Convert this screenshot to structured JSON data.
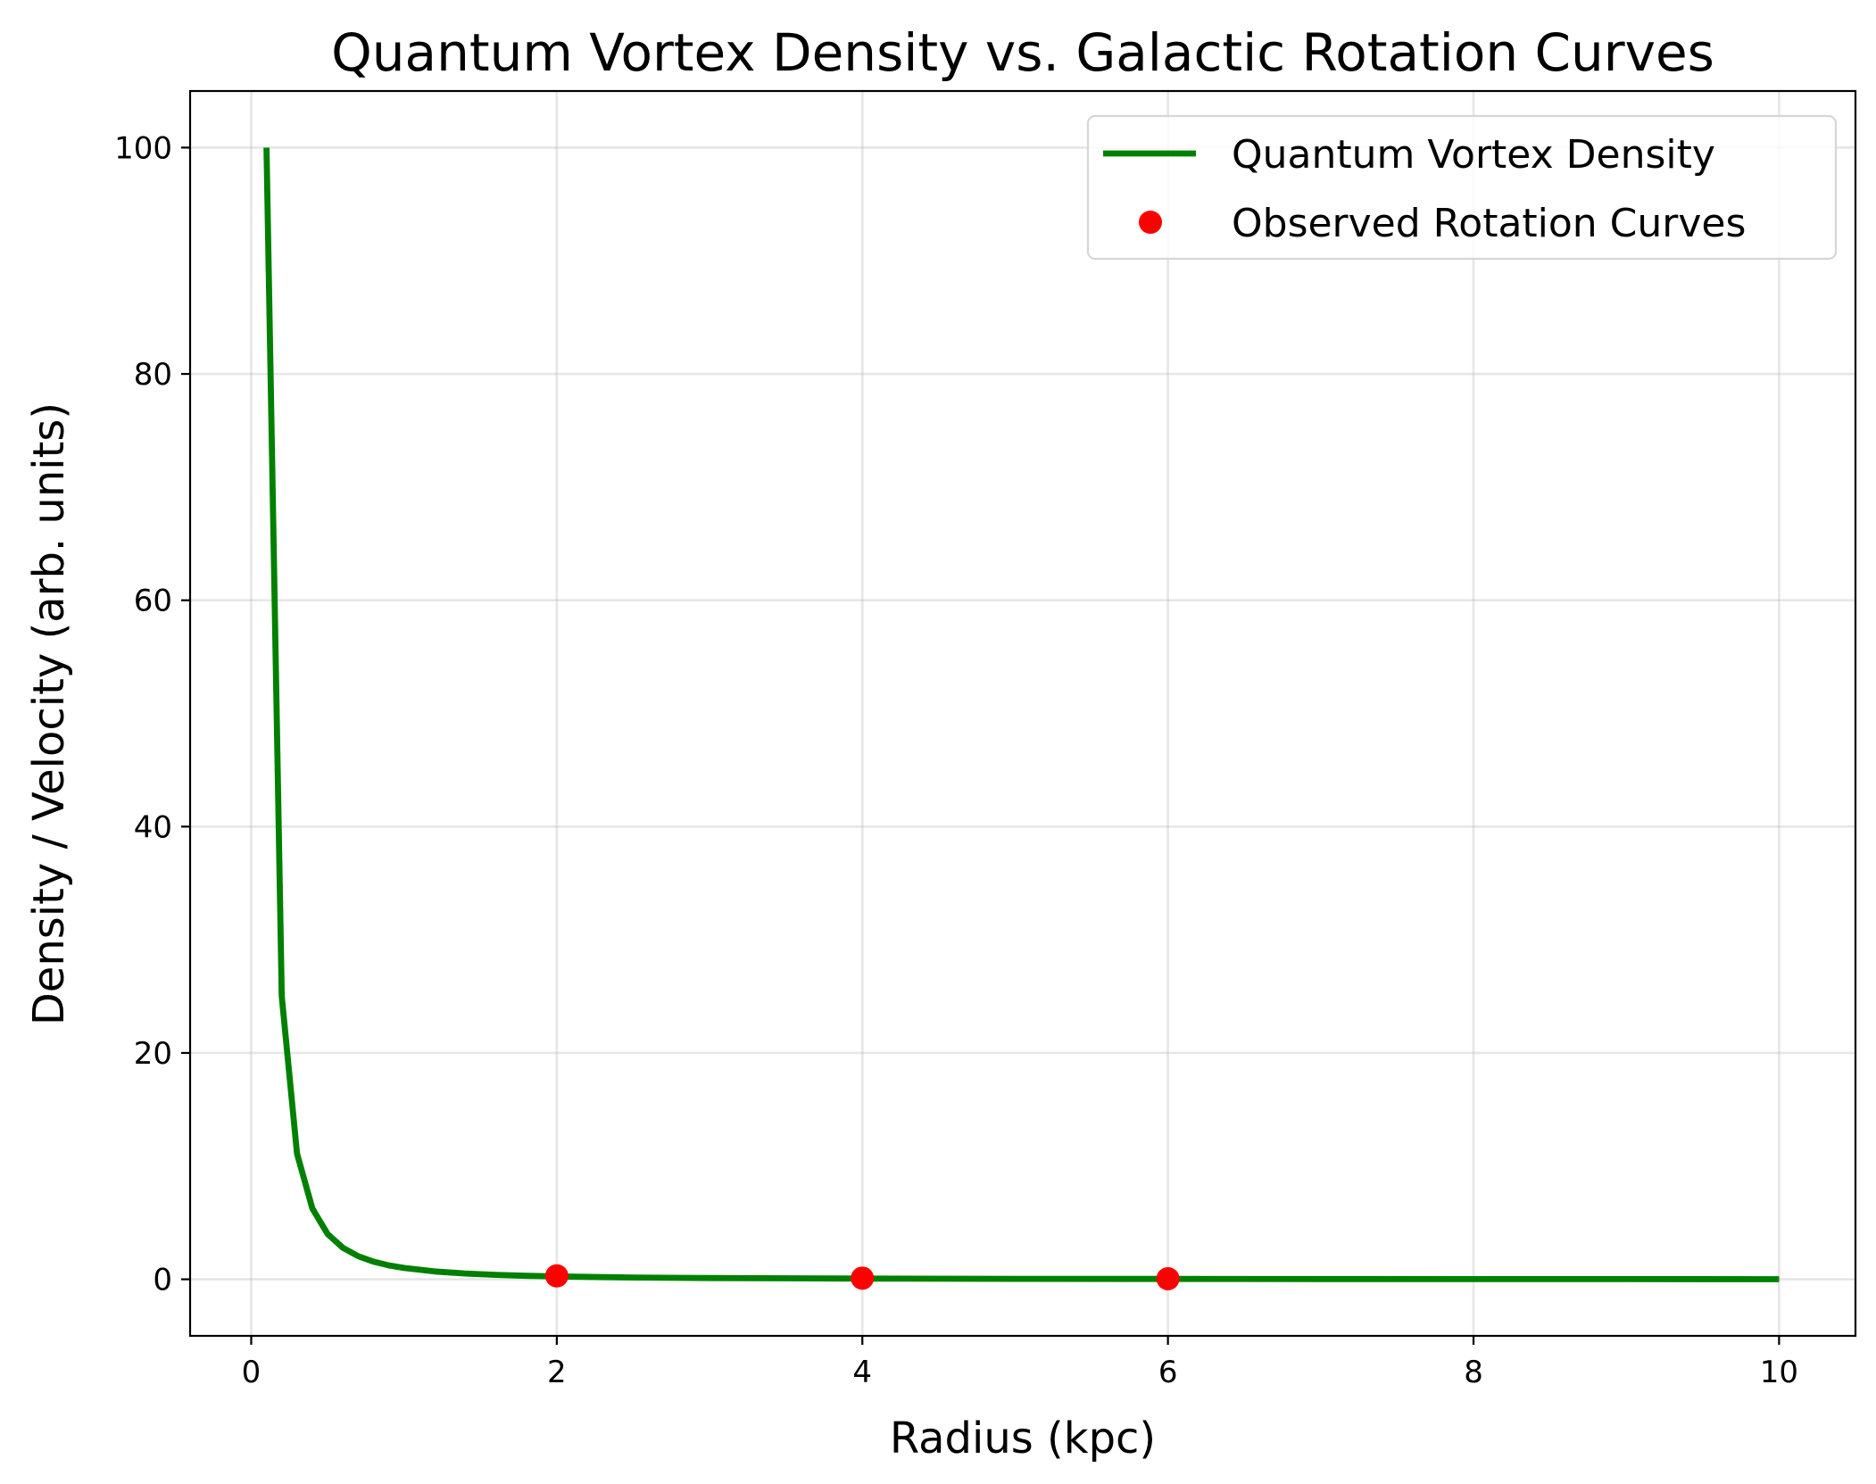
{
  "chart_data": {
    "type": "line",
    "title": "Quantum Vortex Density vs. Galactic Rotation Curves",
    "xlabel": "Radius (kpc)",
    "ylabel": "Density / Velocity (arb. units)",
    "xlim": [
      -0.4,
      10.5
    ],
    "ylim": [
      -5,
      105
    ],
    "xticks": [
      0,
      2,
      4,
      6,
      8,
      10
    ],
    "yticks": [
      0,
      20,
      40,
      60,
      80,
      100
    ],
    "grid": true,
    "legend_position": "upper-right",
    "series": [
      {
        "name": "Quantum Vortex Density",
        "kind": "line",
        "color": "#008000",
        "x": [
          0.1,
          0.2,
          0.3,
          0.4,
          0.5,
          0.6,
          0.7,
          0.8,
          0.9,
          1.0,
          1.2,
          1.4,
          1.6,
          1.8,
          2.0,
          2.5,
          3.0,
          4.0,
          5.0,
          6.0,
          7.0,
          8.0,
          9.0,
          10.0
        ],
        "y": [
          100,
          25,
          11.1,
          6.25,
          4.0,
          2.78,
          2.04,
          1.56,
          1.23,
          1.0,
          0.69,
          0.51,
          0.39,
          0.31,
          0.25,
          0.16,
          0.11,
          0.06,
          0.04,
          0.03,
          0.02,
          0.016,
          0.012,
          0.01
        ]
      },
      {
        "name": "Observed Rotation Curves",
        "kind": "scatter",
        "color": "#ff0000",
        "x": [
          2,
          4,
          6
        ],
        "y": [
          0.3,
          0.1,
          0.05
        ]
      }
    ]
  }
}
